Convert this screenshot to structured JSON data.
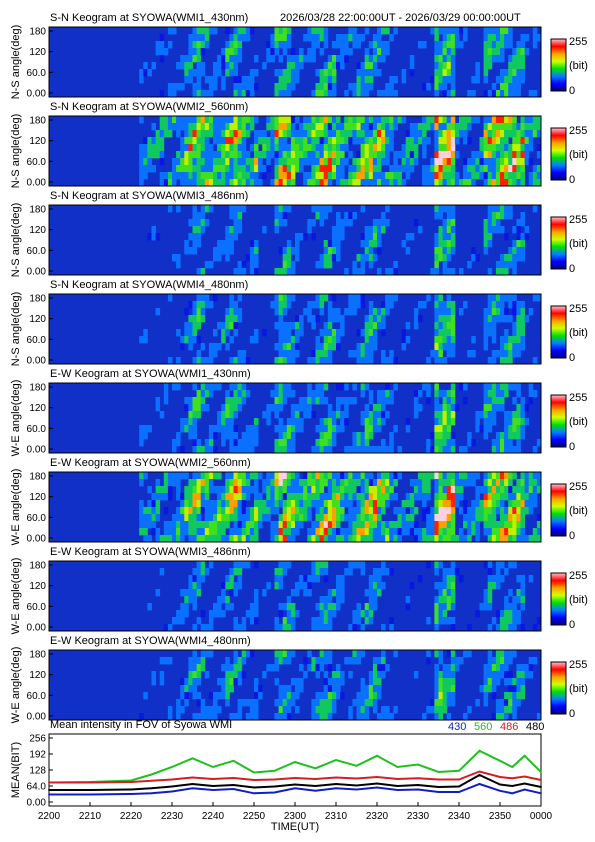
{
  "header": {
    "date_range": "2026/03/28 22:00:00UT - 2026/03/29 00:00:00UT"
  },
  "colorbar": {
    "max_label": "255",
    "unit_label": "(bit)",
    "min_label": "0",
    "colormap": [
      "#000080",
      "#0000ff",
      "#0080ff",
      "#00e000",
      "#d0ff00",
      "#ffa000",
      "#ff0000",
      "#ffc0d0"
    ]
  },
  "panels": [
    {
      "title": "S-N Keogram at SYOWA(WMI1_430nm)",
      "ylabel": "N-S angle(deg)",
      "ticks": [
        "180",
        "120",
        "60.0",
        "0.00"
      ],
      "brightness": 0.55
    },
    {
      "title": "S-N Keogram at SYOWA(WMI2_560nm)",
      "ylabel": "N-S angle(deg)",
      "ticks": [
        "180",
        "120",
        "60.0",
        "0.00"
      ],
      "brightness": 1.0
    },
    {
      "title": "S-N Keogram at SYOWA(WMI3_486nm)",
      "ylabel": "N-S angle(deg)",
      "ticks": [
        "180",
        "120",
        "60.0",
        "0.00"
      ],
      "brightness": 0.45
    },
    {
      "title": "S-N Keogram at SYOWA(WMI4_480nm)",
      "ylabel": "N-S angle(deg)",
      "ticks": [
        "180",
        "120",
        "60.0",
        "0.00"
      ],
      "brightness": 0.5
    },
    {
      "title": "E-W Keogram at SYOWA(WMI1_430nm)",
      "ylabel": "W-E angle(deg)",
      "ticks": [
        "180",
        "120",
        "60.0",
        "0.00"
      ],
      "brightness": 0.55
    },
    {
      "title": "E-W Keogram at SYOWA(WMI2_560nm)",
      "ylabel": "W-E angle(deg)",
      "ticks": [
        "180",
        "120",
        "60.0",
        "0.00"
      ],
      "brightness": 1.0
    },
    {
      "title": "E-W Keogram at SYOWA(WMI3_486nm)",
      "ylabel": "W-E angle(deg)",
      "ticks": [
        "180",
        "120",
        "60.0",
        "0.00"
      ],
      "brightness": 0.45
    },
    {
      "title": "E-W Keogram at SYOWA(WMI4_480nm)",
      "ylabel": "W-E angle(deg)",
      "ticks": [
        "180",
        "120",
        "60.0",
        "0.00"
      ],
      "brightness": 0.5
    }
  ],
  "mean_panel": {
    "title": "Mean intensity in FOV of Syowa WMI",
    "ylabel": "MEAN(BIT)",
    "legend": [
      {
        "label": "430",
        "color": "#1020c0"
      },
      {
        "label": "560",
        "color": "#20c020"
      },
      {
        "label": "486",
        "color": "#d02020"
      },
      {
        "label": "480",
        "color": "#000000"
      }
    ]
  },
  "chart_data": {
    "type": "line",
    "title": "Mean intensity in FOV of Syowa WMI",
    "xlabel": "TIME(UT)",
    "ylabel": "MEAN(BIT)",
    "x_ticks": [
      "2200",
      "2210",
      "2220",
      "2230",
      "2240",
      "2250",
      "2300",
      "2310",
      "2320",
      "2330",
      "2340",
      "2350",
      "0000"
    ],
    "y_ticks": [
      "256",
      "192",
      "128",
      "64.0",
      "0.00"
    ],
    "ylim": [
      0,
      256
    ],
    "x": [
      0,
      10,
      20,
      25,
      30,
      35,
      40,
      45,
      50,
      55,
      60,
      65,
      70,
      75,
      80,
      85,
      90,
      95,
      100,
      105,
      110,
      113,
      116,
      120
    ],
    "series": [
      {
        "name": "430",
        "color": "#1020c0",
        "values": [
          30,
          30,
          32,
          35,
          42,
          55,
          48,
          52,
          35,
          38,
          55,
          45,
          55,
          50,
          58,
          48,
          50,
          40,
          40,
          72,
          45,
          35,
          50,
          35
        ]
      },
      {
        "name": "560",
        "color": "#20c020",
        "values": [
          78,
          80,
          86,
          110,
          140,
          175,
          140,
          165,
          118,
          125,
          160,
          135,
          168,
          145,
          185,
          140,
          150,
          120,
          125,
          205,
          165,
          140,
          185,
          120
        ]
      },
      {
        "name": "486",
        "color": "#d02020",
        "values": [
          78,
          78,
          80,
          85,
          90,
          98,
          92,
          96,
          88,
          90,
          96,
          92,
          98,
          94,
          100,
          92,
          95,
          90,
          90,
          122,
          100,
          95,
          102,
          88
        ]
      },
      {
        "name": "480",
        "color": "#000000",
        "values": [
          48,
          48,
          50,
          55,
          62,
          72,
          64,
          68,
          58,
          62,
          70,
          64,
          72,
          66,
          74,
          64,
          68,
          60,
          62,
          108,
          70,
          64,
          74,
          60
        ]
      }
    ]
  }
}
